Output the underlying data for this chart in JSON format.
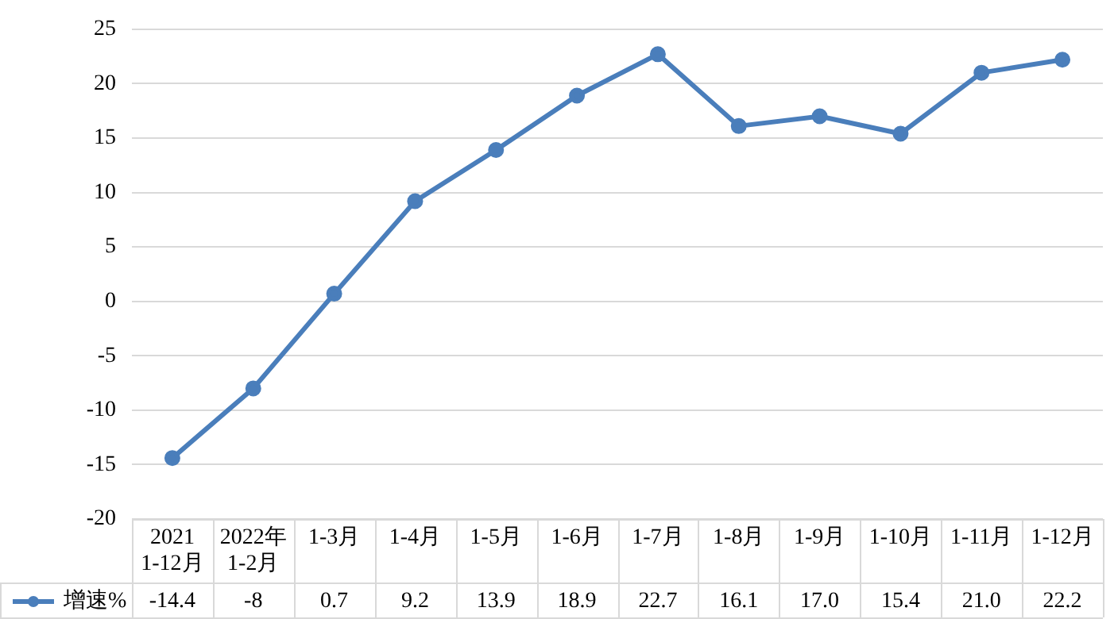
{
  "chart_data": {
    "type": "line",
    "categories": [
      "2021\n1-12月",
      "2022年\n1-2月",
      "1-3月",
      "1-4月",
      "1-5月",
      "1-6月",
      "1-7月",
      "1-8月",
      "1-9月",
      "1-10月",
      "1-11月",
      "1-12月"
    ],
    "series": [
      {
        "name": "增速%",
        "color": "#4a7ebb",
        "values": [
          -14.4,
          -8,
          0.7,
          9.2,
          13.9,
          18.9,
          22.7,
          16.1,
          17.0,
          15.4,
          21.0,
          22.2
        ],
        "value_labels": [
          "-14.4",
          "-8",
          "0.7",
          "9.2",
          "13.9",
          "18.9",
          "22.7",
          "16.1",
          "17.0",
          "15.4",
          "21.0",
          "22.2"
        ]
      }
    ],
    "ylim": [
      -20,
      25
    ],
    "yticks": [
      -20,
      -15,
      -10,
      -5,
      0,
      5,
      10,
      15,
      20,
      25
    ],
    "grid": "y",
    "legend": "bottom left",
    "marker": "circle",
    "line_style": "solid"
  }
}
